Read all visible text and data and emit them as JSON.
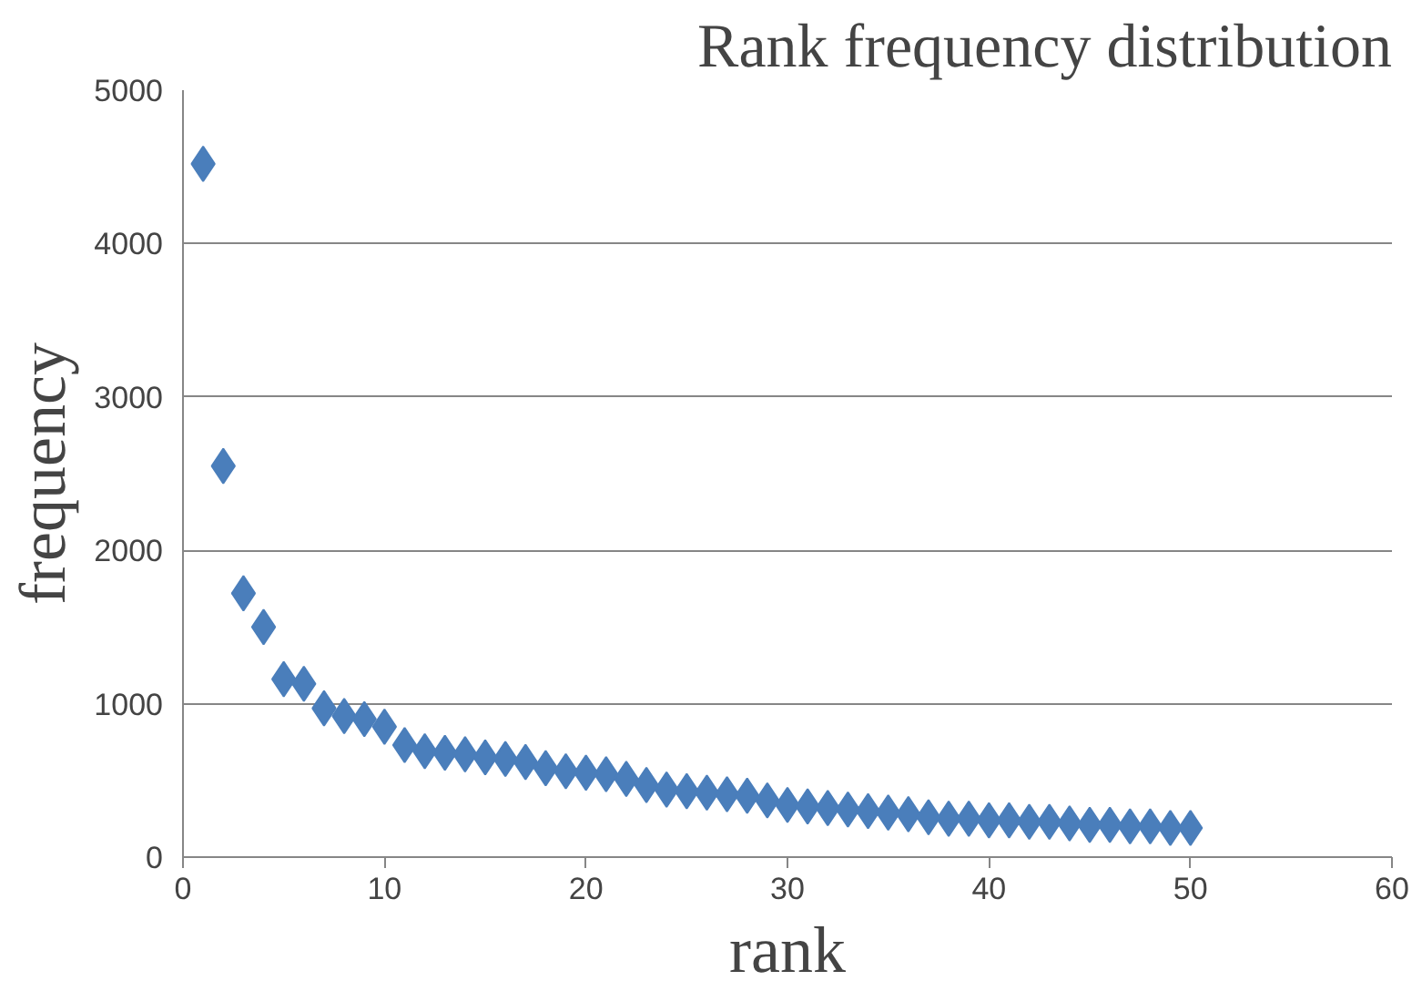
{
  "chart_data": {
    "type": "scatter",
    "title": "Rank frequency distribution",
    "xlabel": "rank",
    "ylabel": "frequency",
    "x": [
      1,
      2,
      3,
      4,
      5,
      6,
      7,
      8,
      9,
      10,
      11,
      12,
      13,
      14,
      15,
      16,
      17,
      18,
      19,
      20,
      21,
      22,
      23,
      24,
      25,
      26,
      27,
      28,
      29,
      30,
      31,
      32,
      33,
      34,
      35,
      36,
      37,
      38,
      39,
      40,
      41,
      42,
      43,
      44,
      45,
      46,
      47,
      48,
      49,
      50
    ],
    "series": [
      {
        "color": "#4a7ebb",
        "values": [
          4520,
          2550,
          1720,
          1500,
          1160,
          1130,
          970,
          920,
          900,
          850,
          730,
          690,
          680,
          670,
          650,
          640,
          620,
          580,
          560,
          550,
          540,
          510,
          470,
          440,
          430,
          420,
          410,
          400,
          370,
          340,
          330,
          320,
          310,
          300,
          290,
          280,
          260,
          250,
          250,
          240,
          240,
          230,
          230,
          220,
          210,
          210,
          200,
          200,
          190,
          190
        ]
      }
    ],
    "xlim": [
      0,
      60
    ],
    "xticks": [
      0,
      10,
      20,
      30,
      40,
      50,
      60
    ],
    "ylim": [
      0,
      5000
    ],
    "yticks": [
      0,
      1000,
      2000,
      3000,
      4000,
      5000
    ],
    "grid": "y",
    "marker": "diamond"
  }
}
